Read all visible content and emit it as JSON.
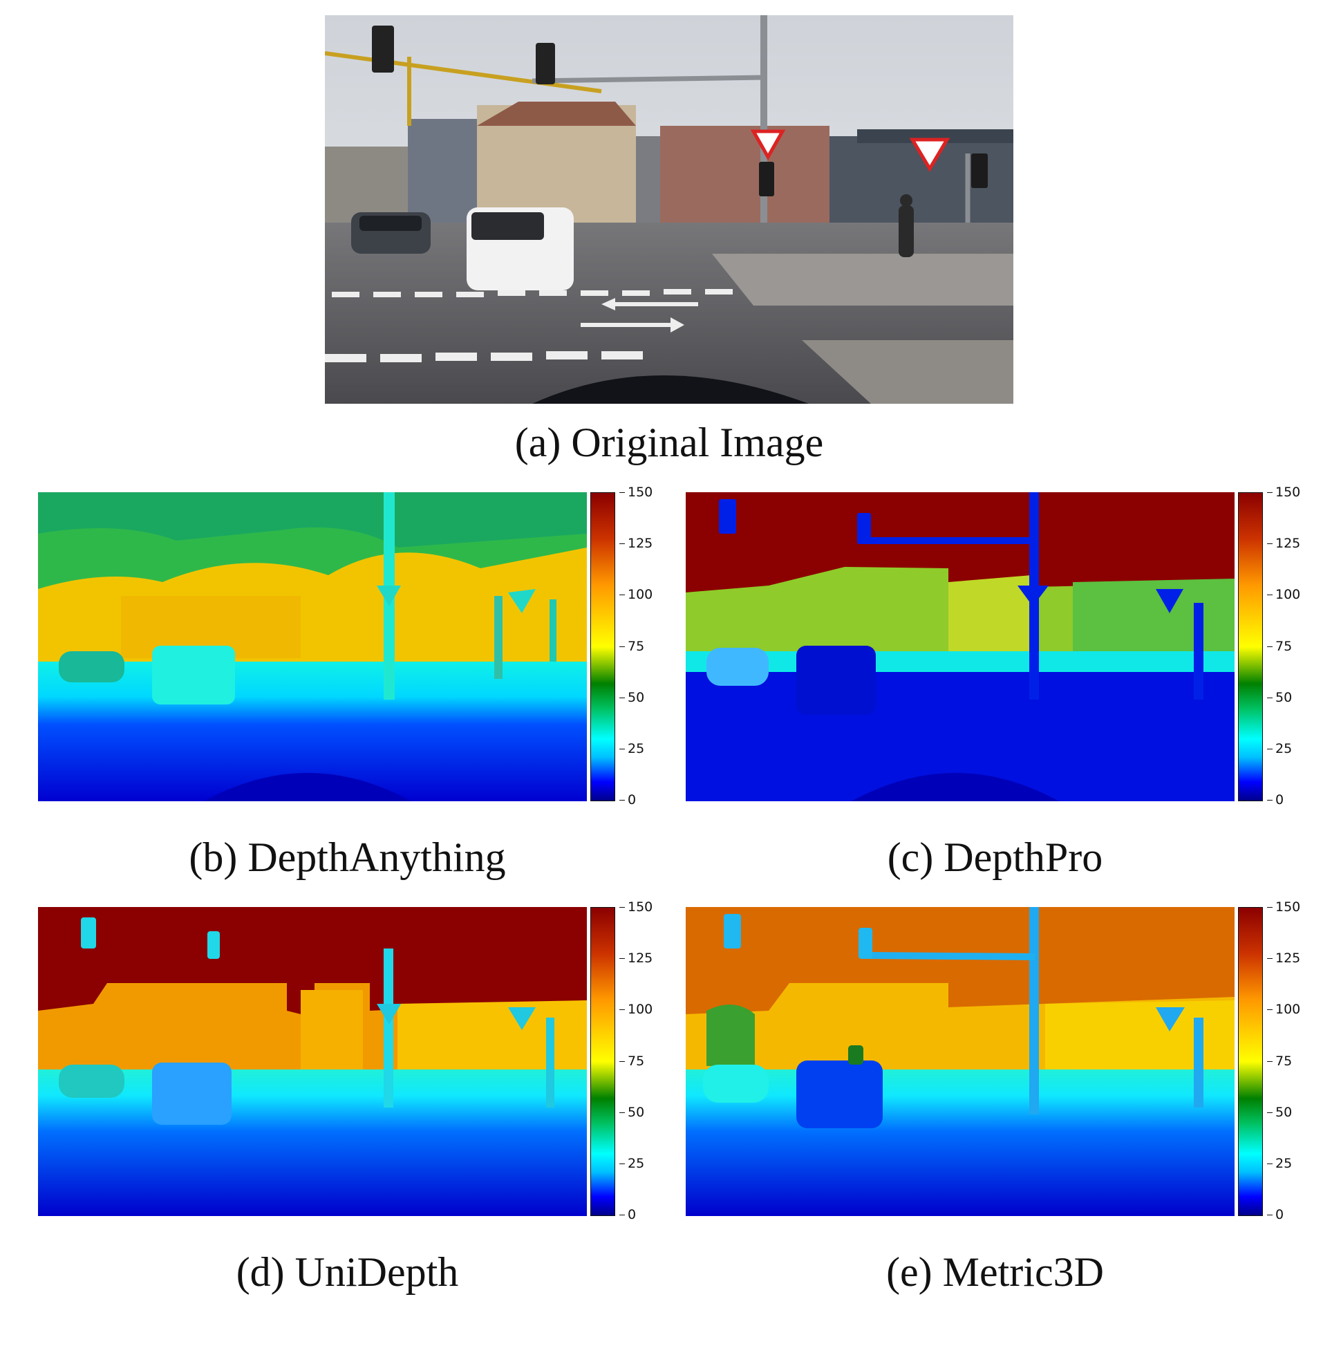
{
  "captions": {
    "a": "(a) Original Image",
    "b": "(b) DepthAnything",
    "c": "(c) DepthPro",
    "d": "(d) UniDepth",
    "e": "(e) Metric3D"
  },
  "colorbar": {
    "ticks": [
      "150",
      "125",
      "100",
      "75",
      "50",
      "25",
      "0"
    ],
    "colormap": [
      "#00008b",
      "#0000ff",
      "#00bfff",
      "#00ffff",
      "#008000",
      "#ffff00",
      "#ff8c00",
      "#8b0000"
    ]
  },
  "colors": {
    "sky_far": "#8b0000",
    "mid_orange": "#d97000",
    "buildings": "#f5c000",
    "ground_near": "#0010e0",
    "road_cyan": "#20f0f0"
  }
}
